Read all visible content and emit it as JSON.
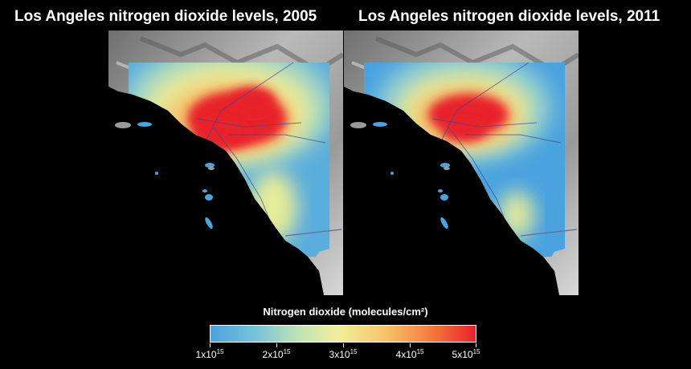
{
  "panels": [
    {
      "title": "Los Angeles nitrogen dioxide levels, 2005",
      "year": "2005"
    },
    {
      "title": "Los Angeles nitrogen dioxide levels, 2011",
      "year": "2011"
    }
  ],
  "colorbar": {
    "title": "Nitrogen dioxide (molecules/cm²)",
    "ticks": [
      {
        "mantissa": "1x10",
        "exp": "15"
      },
      {
        "mantissa": "2x10",
        "exp": "15"
      },
      {
        "mantissa": "3x10",
        "exp": "15"
      },
      {
        "mantissa": "4x10",
        "exp": "15"
      },
      {
        "mantissa": "5x10",
        "exp": "15"
      }
    ],
    "range": [
      1000000000000000.0,
      5000000000000000.0
    ],
    "colors": [
      "#4aa3df",
      "#7cc4d6",
      "#bfe3b4",
      "#f2ef9c",
      "#f7c46a",
      "#f2773d",
      "#e8212a"
    ]
  }
}
